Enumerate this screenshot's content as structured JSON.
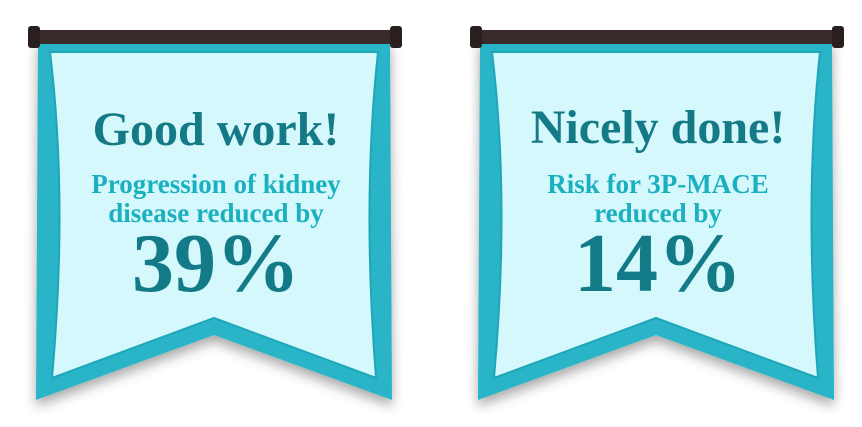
{
  "banners": [
    {
      "heading": "Good work!",
      "line1": "Progression of kidney",
      "line2": "disease reduced by",
      "percent": "39%"
    },
    {
      "heading": "Nicely done!",
      "line1": "Risk for 3P-MACE",
      "line2": "reduced by",
      "percent": "14%"
    }
  ],
  "colors": {
    "banner_fill": "#d4f8fc",
    "banner_border": "#29b4c8",
    "rod": "#3a2b2b",
    "heading_text": "#137a86",
    "sub_text": "#1bb0bf"
  }
}
